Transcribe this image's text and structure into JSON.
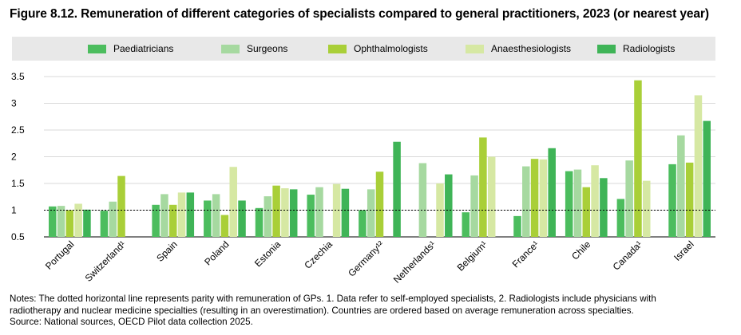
{
  "title": "Figure 8.12. Remuneration of different categories of specialists compared to general practitioners, 2023 (or nearest year)",
  "notes": {
    "line1": "Notes: The dotted horizontal line represents parity with remuneration of GPs. 1. Data refer to self-employed specialists, 2. Radiologists include physicians with",
    "line2": "radiotherapy and nuclear medicine specialties (resulting in an overestimation). Countries are ordered based on average remuneration across specialties.",
    "line3": "Source: National sources, OECD Pilot data collection 2025."
  },
  "chart_data": {
    "type": "bar",
    "categories": [
      "Portugal",
      "Switzerland¹",
      "Spain",
      "Poland",
      "Estonia",
      "Czechia",
      "Germany¹²",
      "Netherlands¹",
      "Belgium¹",
      "France¹",
      "Chile",
      "Canada¹",
      "Israel"
    ],
    "series": [
      {
        "name": "Paediatricians",
        "color": "#4cbd5e",
        "values": [
          1.07,
          0.99,
          1.1,
          1.18,
          1.04,
          1.29,
          1.0,
          null,
          0.96,
          0.89,
          1.73,
          1.21,
          1.86
        ]
      },
      {
        "name": "Surgeons",
        "color": "#a6d9a0",
        "values": [
          1.08,
          1.16,
          1.3,
          1.3,
          1.26,
          1.43,
          1.39,
          1.88,
          1.65,
          1.82,
          1.76,
          1.93,
          2.4
        ]
      },
      {
        "name": "Ophthalmologists",
        "color": "#a9cf38",
        "values": [
          1.0,
          1.64,
          1.1,
          0.91,
          1.46,
          null,
          1.72,
          null,
          2.36,
          1.96,
          1.43,
          3.43,
          1.89
        ]
      },
      {
        "name": "Anaesthesiologists",
        "color": "#d6e8a3",
        "values": [
          1.12,
          null,
          1.33,
          1.81,
          1.41,
          1.49,
          null,
          1.5,
          2.0,
          1.95,
          1.84,
          1.55,
          3.15
        ]
      },
      {
        "name": "Radiologists",
        "color": "#3fb457",
        "values": [
          1.01,
          null,
          1.33,
          1.18,
          1.39,
          1.4,
          2.28,
          1.67,
          null,
          2.16,
          1.6,
          null,
          2.67
        ]
      }
    ],
    "yticks": [
      "3.5",
      "3",
      "2.5",
      "2",
      "1.5",
      "1",
      "0.5"
    ],
    "ylim": [
      0.5,
      3.5
    ],
    "reference_line": 1,
    "grid": "horizontal",
    "legend_position": "top"
  }
}
